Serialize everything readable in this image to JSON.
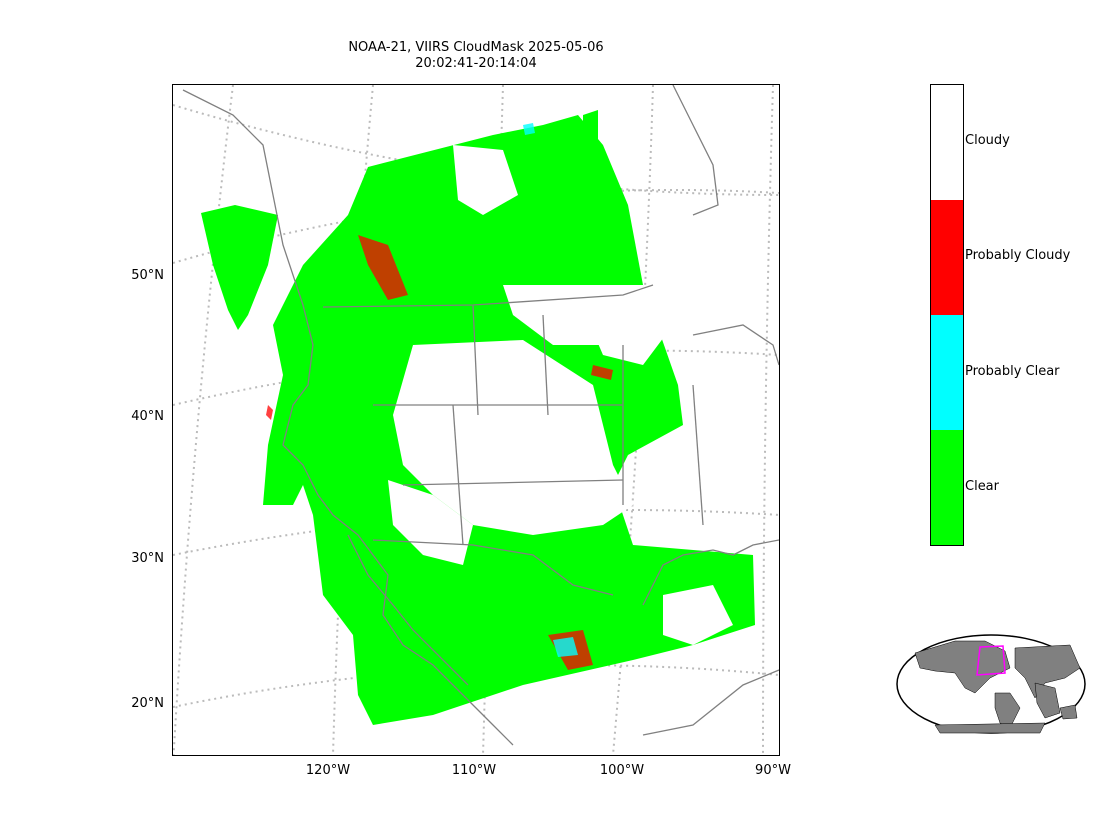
{
  "title": {
    "line1": "NOAA-21, VIIRS CloudMask 2025-05-06",
    "line2": "20:02:41-20:14:04"
  },
  "axes": {
    "lat_labels": [
      "50°N",
      "40°N",
      "30°N",
      "20°N"
    ],
    "lon_labels": [
      "120°W",
      "110°W",
      "100°W",
      "90°W"
    ]
  },
  "colorbar": {
    "categories": [
      {
        "label": "Cloudy",
        "color": "#ffffff"
      },
      {
        "label": "Probably Cloudy",
        "color": "#ff0000"
      },
      {
        "label": "Probably Clear",
        "color": "#00ffff"
      },
      {
        "label": "Clear",
        "color": "#00ff00"
      }
    ]
  },
  "colors": {
    "clear": "#00ff00",
    "probably_clear": "#00ffff",
    "probably_cloudy": "#ff0000",
    "cloudy": "#ffffff",
    "coastline": "#808080",
    "graticule": "#bbbbbb",
    "inset_land": "#808080",
    "inset_box": "#ff00ff"
  }
}
